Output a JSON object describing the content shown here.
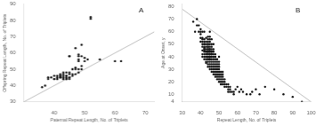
{
  "chart_data": [
    {
      "type": "scatter",
      "xlabel": "Paternal Repeat Length, No. of Triplets",
      "ylabel": "Offspring Repeat Length, No. of Triplets",
      "annotations": [
        "A"
      ],
      "xlim": [
        30,
        73
      ],
      "ylim": [
        30,
        90
      ],
      "xticks": [
        40,
        50,
        60,
        70
      ],
      "yticks": [
        30,
        40,
        50,
        60,
        70,
        80,
        90
      ],
      "grid": false,
      "series": [
        {
          "type": "line",
          "color": "#b0b0b0",
          "x": [
            30,
            73
          ],
          "values": [
            30,
            73
          ]
        },
        {
          "type": "scatter",
          "color": "#111111",
          "x": [
            36,
            37,
            38,
            38,
            39,
            40,
            40,
            40,
            41,
            41,
            41,
            41,
            42,
            42,
            42,
            42,
            42,
            43,
            43,
            43,
            43,
            43,
            43,
            44,
            44,
            44,
            44,
            44,
            44,
            44,
            45,
            45,
            45,
            45,
            45,
            45,
            46,
            46,
            46,
            46,
            47,
            47,
            47,
            47,
            48,
            48,
            48,
            48,
            48,
            48,
            49,
            49,
            49,
            49,
            50,
            50,
            51,
            52,
            52,
            55,
            60,
            62
          ],
          "values": [
            39,
            40,
            44,
            45,
            45,
            44,
            44,
            46,
            44,
            44,
            45,
            46,
            45,
            45,
            46,
            46,
            47,
            44,
            44,
            45,
            46,
            47,
            48,
            44,
            44,
            44,
            45,
            46,
            46,
            48,
            44,
            45,
            47,
            48,
            58,
            58,
            46,
            47,
            50,
            50,
            47,
            50,
            51,
            63,
            48,
            50,
            55,
            56,
            58,
            59,
            50,
            52,
            58,
            65,
            55,
            57,
            56,
            81,
            82,
            56,
            55,
            55
          ]
        }
      ]
    },
    {
      "type": "scatter",
      "xlabel": "Repeat Length, No. of Triplets",
      "ylabel": "Age at Onset, y",
      "annotations": [
        "B"
      ],
      "xlim": [
        30,
        100
      ],
      "ylim": [
        4,
        82
      ],
      "xticks": [
        30,
        40,
        50,
        60,
        70,
        80,
        90,
        100
      ],
      "yticks": [
        4,
        10,
        20,
        30,
        40,
        50,
        60,
        70,
        80
      ],
      "grid": false,
      "series": [
        {
          "type": "line",
          "color": "#b0b0b0",
          "x": [
            30,
            100
          ],
          "values": [
            78,
            4
          ]
        },
        {
          "type": "scatter",
          "color": "#111111",
          "x": [
            36,
            37,
            38,
            38,
            39,
            39,
            40,
            40,
            40,
            40,
            40,
            41,
            41,
            41,
            41,
            41,
            41,
            41,
            41,
            41,
            42,
            42,
            42,
            42,
            42,
            42,
            42,
            42,
            42,
            42,
            42,
            42,
            42,
            43,
            43,
            43,
            43,
            43,
            43,
            43,
            43,
            43,
            43,
            43,
            43,
            43,
            43,
            44,
            44,
            44,
            44,
            44,
            44,
            44,
            44,
            44,
            44,
            44,
            44,
            44,
            44,
            44,
            44,
            44,
            44,
            44,
            44,
            44,
            45,
            45,
            45,
            45,
            45,
            45,
            45,
            45,
            45,
            45,
            45,
            45,
            45,
            45,
            45,
            45,
            45,
            45,
            45,
            45,
            46,
            46,
            46,
            46,
            46,
            46,
            46,
            46,
            46,
            46,
            46,
            46,
            46,
            46,
            46,
            47,
            47,
            47,
            47,
            47,
            47,
            47,
            47,
            47,
            47,
            47,
            47,
            48,
            48,
            48,
            48,
            48,
            48,
            48,
            48,
            48,
            48,
            49,
            49,
            49,
            49,
            49,
            49,
            49,
            49,
            49,
            50,
            50,
            50,
            50,
            50,
            50,
            50,
            50,
            50,
            50,
            51,
            51,
            51,
            51,
            51,
            51,
            52,
            52,
            52,
            52,
            52,
            52,
            53,
            53,
            53,
            53,
            54,
            54,
            55,
            55,
            55,
            55,
            56,
            56,
            56,
            57,
            58,
            58,
            59,
            60,
            61,
            62,
            63,
            65,
            67,
            68,
            70,
            72,
            75,
            80,
            85,
            90,
            95
          ],
          "values": [
            68,
            60,
            65,
            70,
            60,
            65,
            52,
            55,
            58,
            60,
            62,
            40,
            42,
            45,
            48,
            50,
            52,
            54,
            55,
            60,
            38,
            40,
            42,
            44,
            45,
            46,
            47,
            48,
            50,
            50,
            52,
            54,
            60,
            35,
            36,
            38,
            40,
            40,
            42,
            42,
            44,
            44,
            46,
            48,
            50,
            52,
            55,
            32,
            34,
            36,
            38,
            38,
            40,
            40,
            42,
            42,
            44,
            44,
            44,
            46,
            46,
            48,
            48,
            50,
            50,
            52,
            54,
            56,
            30,
            32,
            34,
            36,
            38,
            38,
            40,
            40,
            42,
            42,
            44,
            44,
            46,
            46,
            48,
            50,
            52,
            54,
            56,
            60,
            28,
            30,
            32,
            34,
            36,
            38,
            40,
            42,
            42,
            44,
            44,
            46,
            48,
            50,
            54,
            26,
            28,
            30,
            32,
            34,
            36,
            38,
            40,
            42,
            44,
            46,
            50,
            24,
            26,
            28,
            30,
            32,
            34,
            36,
            38,
            40,
            42,
            22,
            24,
            26,
            28,
            30,
            32,
            34,
            36,
            38,
            20,
            22,
            24,
            26,
            28,
            30,
            32,
            34,
            36,
            40,
            18,
            20,
            22,
            24,
            26,
            28,
            18,
            20,
            22,
            24,
            26,
            28,
            16,
            18,
            20,
            22,
            16,
            18,
            12,
            14,
            16,
            18,
            12,
            14,
            16,
            12,
            10,
            12,
            14,
            16,
            12,
            14,
            12,
            10,
            10,
            12,
            14,
            10,
            16,
            14,
            10,
            8,
            4
          ]
        }
      ]
    }
  ]
}
